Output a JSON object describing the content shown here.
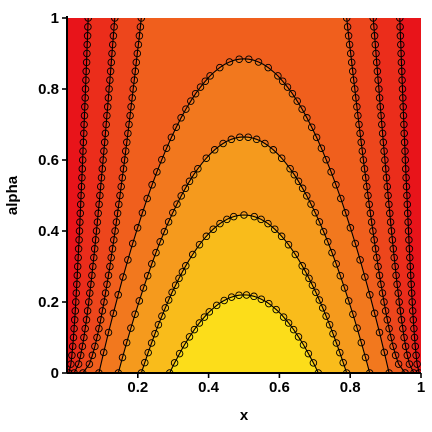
{
  "chart_data": {
    "type": "contour",
    "title": "",
    "xlabel": "x",
    "ylabel": "alpha",
    "xlim": [
      0,
      1
    ],
    "ylim": [
      0,
      1
    ],
    "x_ticks": [
      {
        "value": 0.2,
        "label": "0.2"
      },
      {
        "value": 0.4,
        "label": "0.4"
      },
      {
        "value": 0.6,
        "label": "0.6"
      },
      {
        "value": 0.8,
        "label": "0.8"
      },
      {
        "value": 1.0,
        "label": "1"
      }
    ],
    "y_ticks": [
      {
        "value": 0.0,
        "label": "0"
      },
      {
        "value": 0.2,
        "label": "0.2"
      },
      {
        "value": 0.4,
        "label": "0.4"
      },
      {
        "value": 0.6,
        "label": "0.6"
      },
      {
        "value": 0.8,
        "label": "0.8"
      },
      {
        "value": 1.0,
        "label": "1"
      }
    ],
    "colormap": {
      "low": "#e8141a",
      "mid": "#f2781e",
      "high": "#ffff18"
    },
    "contours": [
      {
        "y_at_center": 0.22,
        "x_at_bottom": [
          0.29,
          0.71
        ]
      },
      {
        "y_at_center": 0.445,
        "x_at_bottom": [
          0.21,
          0.79
        ]
      },
      {
        "y_at_center": 0.665,
        "x_at_bottom": [
          0.145,
          0.855
        ]
      },
      {
        "y_at_center": 0.885,
        "x_at_bottom": [
          0.09,
          0.91
        ]
      },
      {
        "x_at_bottom": [
          0.045,
          0.955
        ],
        "x_at_top": [
          0.21,
          0.79
        ]
      },
      {
        "x_at_bottom": [
          0.02,
          0.98
        ],
        "x_at_top": [
          0.135,
          0.865
        ]
      },
      {
        "x_at_bottom": [
          0.005,
          0.995
        ],
        "x_at_top": [
          0.06,
          0.94
        ]
      }
    ],
    "grid": false,
    "legend": "none"
  }
}
